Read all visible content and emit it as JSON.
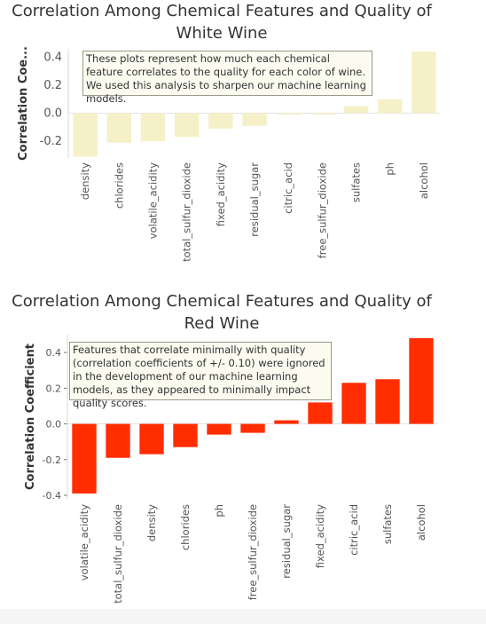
{
  "chart_data": [
    {
      "type": "bar",
      "title": [
        "Correlation Among Chemical Features  and Quality of",
        "White Wine"
      ],
      "ylabel": "Correlation Coe...",
      "ylim": [
        -0.32,
        0.46
      ],
      "yticks": [
        "0.4",
        "0.2",
        "0.0",
        "-0.2"
      ],
      "ytick_values": [
        0.4,
        0.2,
        0.0,
        -0.2
      ],
      "bar_color": "#f5f0c8",
      "categories": [
        "density",
        "chlorides",
        "volatile_acidity",
        "total_sulfur_dioxide",
        "fixed_acidity",
        "residual_sugar",
        "citric_acid",
        "free_sulfur_dioxide",
        "sulfates",
        "ph",
        "alcohol"
      ],
      "values": [
        -0.31,
        -0.21,
        -0.2,
        -0.17,
        -0.11,
        -0.09,
        -0.01,
        -0.01,
        0.05,
        0.1,
        0.44
      ],
      "note": "These plots represent how much each chemical feature correlates to the quality for each color of wine. We used this analysis to sharpen our machine learning models."
    },
    {
      "type": "bar",
      "title": [
        "Correlation Among Chemical Features  and Quality of",
        "Red Wine"
      ],
      "ylabel": "Correlation Coefficient",
      "ylim": [
        -0.42,
        0.5
      ],
      "yticks": [
        "0.4",
        "0.2",
        "0.0",
        "-0.2",
        "-0.4"
      ],
      "ytick_values": [
        0.4,
        0.2,
        0.0,
        -0.2,
        -0.4
      ],
      "bar_color": "#ff2d00",
      "categories": [
        "volatile_acidity",
        "total_sulfur_dioxide",
        "density",
        "chlorides",
        "ph",
        "free_sulfur_dioxide",
        "residual_sugar",
        "fixed_acidity",
        "citric_acid",
        "sulfates",
        "alcohol"
      ],
      "values": [
        -0.39,
        -0.19,
        -0.17,
        -0.13,
        -0.06,
        -0.05,
        0.02,
        0.12,
        0.23,
        0.25,
        0.48
      ],
      "note": "Features that correlate minimally with quality (correlation coefficients of +/- 0.10) were ignored in the development of our machine learning models, as they appeared to minimally impact quality scores."
    }
  ]
}
